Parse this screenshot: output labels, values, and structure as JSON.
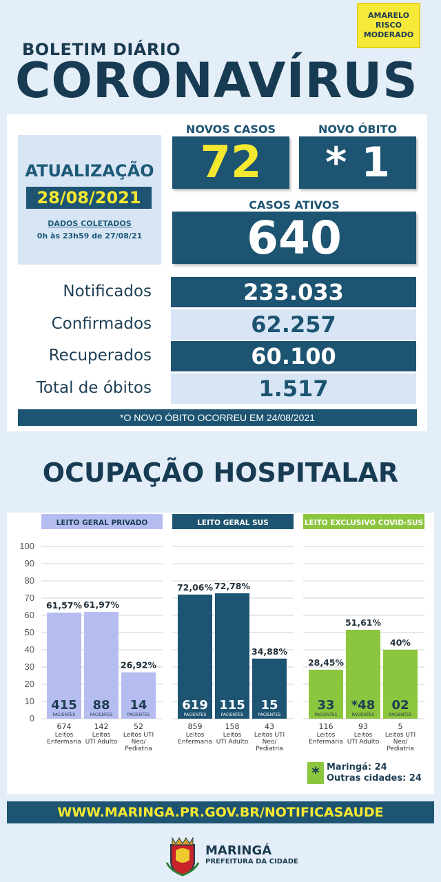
{
  "risk": {
    "line1": "AMARELO",
    "line2": "RISCO",
    "line3": "MODERADO"
  },
  "header": {
    "subtitle": "BOLETIM DIÁRIO",
    "title": "CORONAVÍRUS"
  },
  "update": {
    "label": "ATUALIZAÇÃO",
    "date": "28/08/2021",
    "note1": "DADOS COLETADOS",
    "note2": "0h às 23h59 de 27/08/21"
  },
  "highlights": {
    "new_cases_label": "NOVOS CASOS",
    "new_cases": "72",
    "new_death_label": "NOVO ÓBITO",
    "new_death": "* 1",
    "active_label": "CASOS ATIVOS",
    "active": "640"
  },
  "totals": [
    {
      "label": "Notificados",
      "value": "233.033"
    },
    {
      "label": "Confirmados",
      "value": "62.257"
    },
    {
      "label": "Recuperados",
      "value": "60.100"
    },
    {
      "label": "Total de óbitos",
      "value": "1.517"
    }
  ],
  "footnote": "*O NOVO ÓBITO OCORREU EM 24/08/2021",
  "hospital_title": "OCUPAÇÃO HOSPITALAR",
  "colors": {
    "dark_blue": "#1d5472",
    "lavender": "#b5bdf0",
    "green": "#8cc63f",
    "yellow": "#f5e830"
  },
  "chart_data": {
    "type": "bar",
    "ylim": [
      0,
      100
    ],
    "yticks": [
      "0",
      "10",
      "20",
      "30",
      "40",
      "50",
      "60",
      "70",
      "80",
      "90",
      "100"
    ],
    "groups": [
      {
        "name": "LEITO GERAL PRIVADO",
        "color": "#b5bdf0",
        "bars": [
          {
            "pct": 61.57,
            "pct_label": "61,57%",
            "patients": "415",
            "unit": "PACIENTES",
            "beds": "674",
            "cat1": "Leitos",
            "cat2": "Enfermaria",
            "cat3": ""
          },
          {
            "pct": 61.97,
            "pct_label": "61,97%",
            "patients": "88",
            "unit": "PACIENTES",
            "beds": "142",
            "cat1": "Leitos",
            "cat2": "UTI Adulto",
            "cat3": ""
          },
          {
            "pct": 26.92,
            "pct_label": "26,92%",
            "patients": "14",
            "unit": "PACIENTES",
            "beds": "52",
            "cat1": "Leitos UTI",
            "cat2": "Neo/",
            "cat3": "Pediatria"
          }
        ]
      },
      {
        "name": "LEITO GERAL SUS",
        "color": "#1d5472",
        "bars": [
          {
            "pct": 72.06,
            "pct_label": "72,06%",
            "patients": "619",
            "unit": "PACIENTES",
            "beds": "859",
            "cat1": "Leitos",
            "cat2": "Enfermaria",
            "cat3": ""
          },
          {
            "pct": 72.78,
            "pct_label": "72,78%",
            "patients": "115",
            "unit": "PACIENTES",
            "beds": "158",
            "cat1": "Leitos",
            "cat2": "UTI Adulto",
            "cat3": ""
          },
          {
            "pct": 34.88,
            "pct_label": "34,88%",
            "patients": "15",
            "unit": "PACIENTES",
            "beds": "43",
            "cat1": "Leitos UTI",
            "cat2": "Neo/",
            "cat3": "Pediatria"
          }
        ]
      },
      {
        "name": "LEITO EXCLUSIVO COVID-SUS",
        "color": "#8cc63f",
        "bars": [
          {
            "pct": 28.45,
            "pct_label": "28,45%",
            "patients": "33",
            "unit": "PACIENTES",
            "beds": "116",
            "cat1": "Leitos",
            "cat2": "Enfermaria",
            "cat3": ""
          },
          {
            "pct": 51.61,
            "pct_label": "51,61%",
            "patients": "*48",
            "unit": "PACIENTES",
            "beds": "93",
            "cat1": "Leitos",
            "cat2": "UTI Adulto",
            "cat3": ""
          },
          {
            "pct": 40,
            "pct_label": "40%",
            "patients": "02",
            "unit": "PACIENTES",
            "beds": "5",
            "cat1": "Leitos UTI",
            "cat2": "Neo/",
            "cat3": "Pediatria"
          }
        ]
      }
    ]
  },
  "legend": {
    "symbol": "*",
    "line1": "Maringá: 24",
    "line2": "Outras cidades: 24"
  },
  "website": "WWW.MARINGA.PR.GOV.BR/NOTIFICASAUDE",
  "logo": {
    "name": "MARINGÁ",
    "sub": "PREFEITURA DA CIDADE"
  }
}
